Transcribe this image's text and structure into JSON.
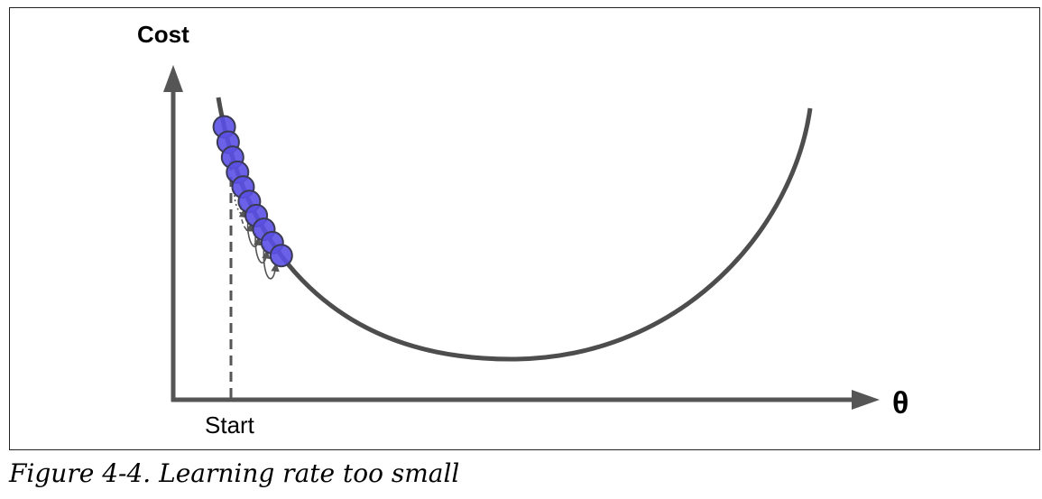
{
  "figure": {
    "y_axis_label": "Cost",
    "x_axis_label": "θ",
    "start_label": "Start",
    "caption_number": "Figure 4-4.",
    "caption_text": "Learning rate too small"
  },
  "colors": {
    "axis": "#555555",
    "curve": "#4d4d4d",
    "step_fill": "#5b50e6",
    "step_stroke": "#3a3a55",
    "arrow": "#555555"
  },
  "steps": {
    "count": 10
  }
}
